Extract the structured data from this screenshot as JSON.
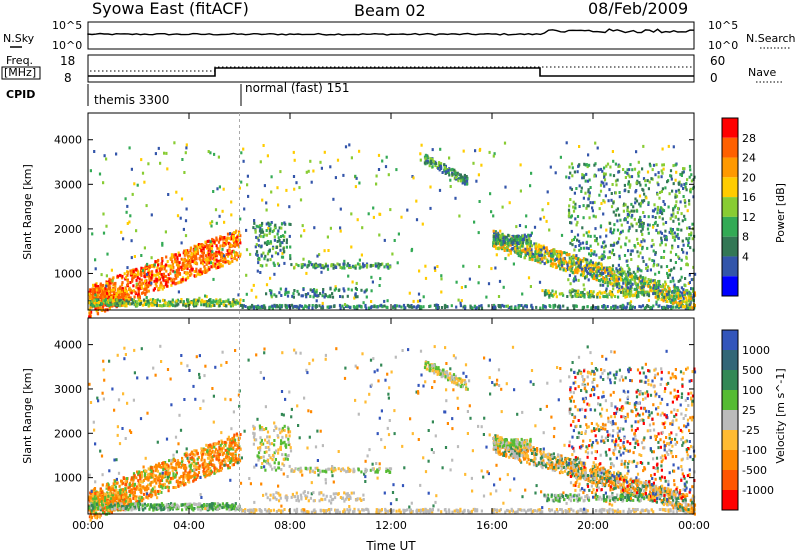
{
  "header": {
    "station": "Syowa East (fitACF)",
    "beam": "Beam 02",
    "date": "08/Feb/2009"
  },
  "top_panel": {
    "left_label": "N.Sky",
    "right_label": "N.Search",
    "left_ticks": [
      "10^5",
      "10^0"
    ],
    "right_ticks": [
      "10^5",
      "10^0"
    ]
  },
  "freq_panel": {
    "left_label_1": "Freq.",
    "left_label_2": "[MHz]",
    "left_ticks": [
      "18",
      "8"
    ],
    "right_label": "Nave",
    "right_ticks": [
      "60",
      "0"
    ]
  },
  "cpid_panel": {
    "label": "CPID",
    "modes": [
      {
        "name": "themis 3300",
        "start_hour": 0
      },
      {
        "name": "normal (fast) 151",
        "start_hour": 6
      }
    ]
  },
  "chart_data": [
    {
      "type": "heatmap",
      "quantity": "power",
      "xlabel": "",
      "ylabel": "Slant Range [km]",
      "colorbar_label": "Power [dB]",
      "colorbar_ticks": [
        "28",
        "24",
        "20",
        "16",
        "12",
        "8",
        "4"
      ],
      "colors": [
        "#ff0000",
        "#ff6000",
        "#ff9900",
        "#ffcc00",
        "#88cc33",
        "#33aa55",
        "#337755",
        "#3355aa",
        "#0000ff"
      ],
      "x_ticks": [
        "00:00",
        "04:00",
        "08:00",
        "12:00",
        "16:00",
        "20:00",
        "00:00"
      ],
      "y_ticks": [
        "1000",
        "2000",
        "3000",
        "4000"
      ],
      "xlim_hours": [
        0,
        24
      ],
      "ylim_km": [
        180,
        4600
      ]
    },
    {
      "type": "heatmap",
      "quantity": "velocity",
      "xlabel": "Time UT",
      "ylabel": "Slant Range [km]",
      "colorbar_label": "Velocity [m s^-1]",
      "colorbar_ticks": [
        "1000",
        "500",
        "100",
        "25",
        "-25",
        "-100",
        "-500",
        "-1000"
      ],
      "colors": [
        "#3355bb",
        "#336677",
        "#338855",
        "#55bb33",
        "#bbbbbb",
        "#ffbb33",
        "#ff8800",
        "#ff5500",
        "#ff0000"
      ],
      "x_ticks": [
        "00:00",
        "04:00",
        "08:00",
        "12:00",
        "16:00",
        "20:00",
        "00:00"
      ],
      "y_ticks": [
        "1000",
        "2000",
        "3000",
        "4000"
      ],
      "xlim_hours": [
        0,
        24
      ],
      "ylim_km": [
        180,
        4600
      ]
    }
  ]
}
